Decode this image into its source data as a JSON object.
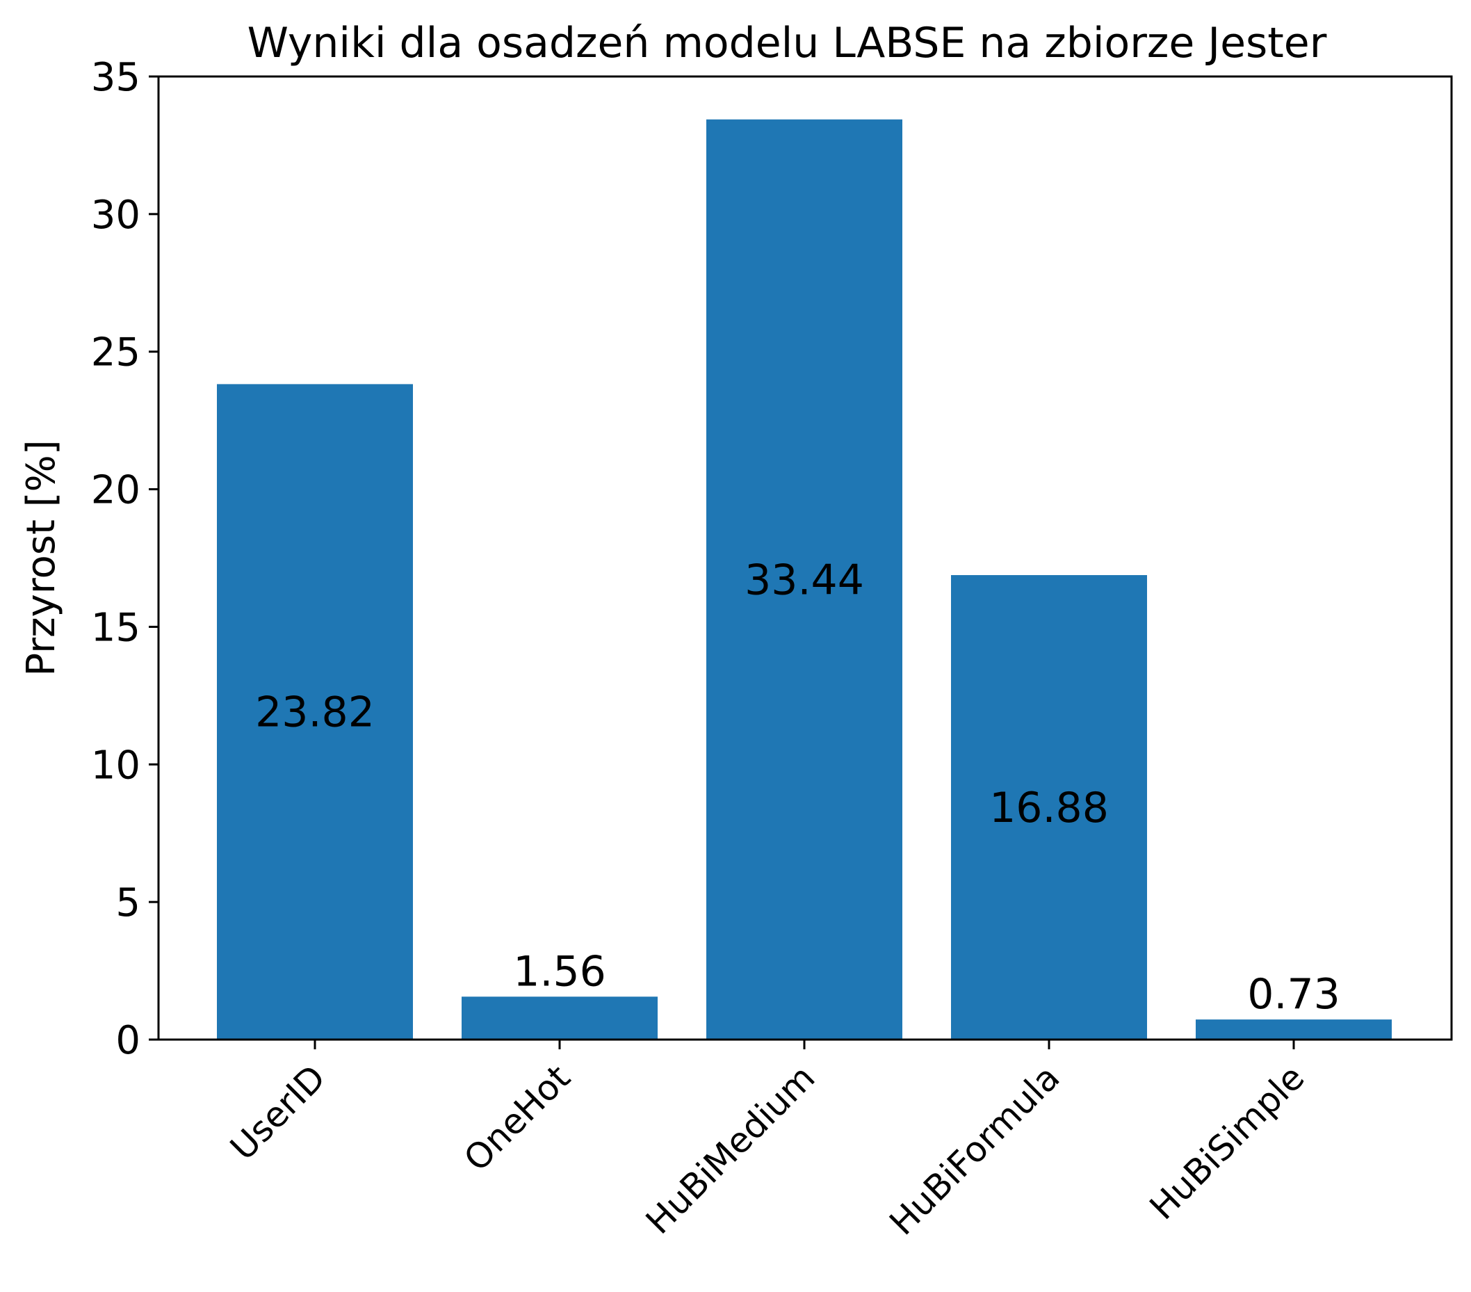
{
  "chart_data": {
    "type": "bar",
    "title": "Wyniki dla osadzeń modelu LABSE na zbiorze Jester",
    "xlabel": "",
    "ylabel": "Przyrost [%]",
    "categories": [
      "UserID",
      "OneHot",
      "HuBiMedium",
      "HuBiFormula",
      "HuBiSimple"
    ],
    "values": [
      23.82,
      1.56,
      33.44,
      16.88,
      0.73
    ],
    "data_labels": [
      "23.82",
      "1.56",
      "33.44",
      "16.88",
      "0.73"
    ],
    "ylim": [
      0,
      35
    ],
    "yticks": [
      0,
      5,
      10,
      15,
      20,
      25,
      30,
      35
    ],
    "ytick_labels": [
      "0",
      "5",
      "10",
      "15",
      "20",
      "25",
      "30",
      "35"
    ],
    "bar_color": "#1f77b4",
    "grid": false,
    "legend": "none"
  }
}
